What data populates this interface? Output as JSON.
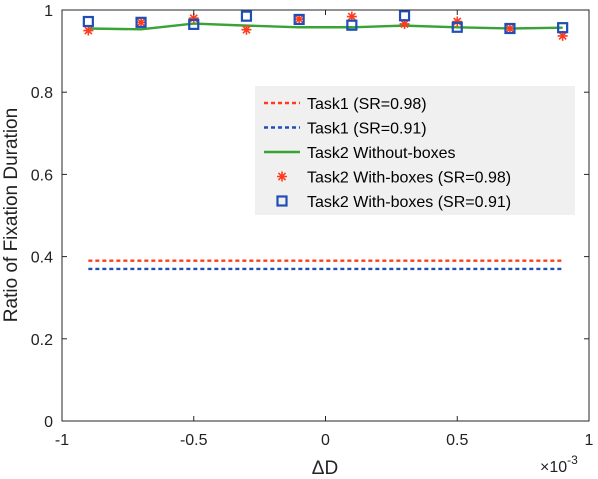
{
  "chart_data": {
    "type": "line",
    "title": "",
    "xlabel": "ΔD",
    "ylabel": "Ratio of Fixation Duration",
    "x_exponent_base": "×10",
    "x_exponent_power": "-3",
    "xlim": [
      -1,
      1
    ],
    "ylim": [
      0,
      1
    ],
    "x_ticks": [
      -1,
      -0.5,
      0,
      0.5,
      1
    ],
    "x_tick_labels": [
      "-1",
      "-0.5",
      "0",
      "0.5",
      "1"
    ],
    "y_ticks": [
      0,
      0.2,
      0.4,
      0.6,
      0.8,
      1
    ],
    "y_tick_labels": [
      "0",
      "0.2",
      "0.4",
      "0.6",
      "0.8",
      "1"
    ],
    "grid": false,
    "legend_position": "upper-right",
    "x": [
      -0.9,
      -0.7,
      -0.5,
      -0.3,
      -0.1,
      0.1,
      0.3,
      0.5,
      0.7,
      0.9
    ],
    "series": [
      {
        "name": "Task1 (SR=0.98)",
        "style": "dashed-line",
        "color": "#ff3b1f",
        "x": [
          -0.9,
          0.9
        ],
        "values": [
          0.39,
          0.39
        ]
      },
      {
        "name": "Task1 (SR=0.91)",
        "style": "dashed-line",
        "color": "#1f4fb5",
        "x": [
          -0.9,
          0.9
        ],
        "values": [
          0.37,
          0.37
        ]
      },
      {
        "name": "Task2 Without-boxes",
        "style": "solid-line",
        "color": "#3aa335",
        "values": [
          0.955,
          0.953,
          0.967,
          0.962,
          0.958,
          0.958,
          0.962,
          0.958,
          0.955,
          0.957
        ]
      },
      {
        "name": "Task2 With-boxes (SR=0.98)",
        "style": "star-marker",
        "color": "#ff3b1f",
        "values": [
          0.95,
          0.97,
          0.98,
          0.952,
          0.978,
          0.984,
          0.966,
          0.972,
          0.955,
          0.937
        ]
      },
      {
        "name": "Task2 With-boxes (SR=0.91)",
        "style": "square-marker",
        "color": "#1f4fb5",
        "values": [
          0.972,
          0.97,
          0.965,
          0.985,
          0.977,
          0.963,
          0.986,
          0.958,
          0.955,
          0.957
        ]
      }
    ]
  }
}
